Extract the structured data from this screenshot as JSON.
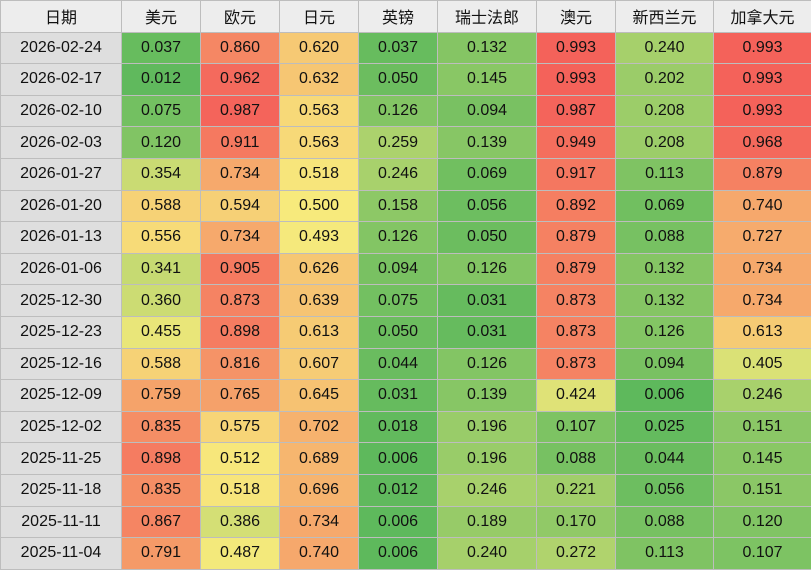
{
  "headers": [
    "日期",
    "美元",
    "欧元",
    "日元",
    "英镑",
    "瑞士法郎",
    "澳元",
    "新西兰元",
    "加拿大元"
  ],
  "rows": [
    {
      "date": "2026-02-24",
      "values": [
        "0.037",
        "0.860",
        "0.620",
        "0.037",
        "0.132",
        "0.993",
        "0.240",
        "0.993"
      ]
    },
    {
      "date": "2026-02-17",
      "values": [
        "0.012",
        "0.962",
        "0.632",
        "0.050",
        "0.145",
        "0.993",
        "0.202",
        "0.993"
      ]
    },
    {
      "date": "2026-02-10",
      "values": [
        "0.075",
        "0.987",
        "0.563",
        "0.126",
        "0.094",
        "0.987",
        "0.208",
        "0.993"
      ]
    },
    {
      "date": "2026-02-03",
      "values": [
        "0.120",
        "0.911",
        "0.563",
        "0.259",
        "0.139",
        "0.949",
        "0.208",
        "0.968"
      ]
    },
    {
      "date": "2026-01-27",
      "values": [
        "0.354",
        "0.734",
        "0.518",
        "0.246",
        "0.069",
        "0.917",
        "0.113",
        "0.879"
      ]
    },
    {
      "date": "2026-01-20",
      "values": [
        "0.588",
        "0.594",
        "0.500",
        "0.158",
        "0.056",
        "0.892",
        "0.069",
        "0.740"
      ]
    },
    {
      "date": "2026-01-13",
      "values": [
        "0.556",
        "0.734",
        "0.493",
        "0.126",
        "0.050",
        "0.879",
        "0.088",
        "0.727"
      ]
    },
    {
      "date": "2026-01-06",
      "values": [
        "0.341",
        "0.905",
        "0.626",
        "0.094",
        "0.126",
        "0.879",
        "0.132",
        "0.734"
      ]
    },
    {
      "date": "2025-12-30",
      "values": [
        "0.360",
        "0.873",
        "0.639",
        "0.075",
        "0.031",
        "0.873",
        "0.132",
        "0.734"
      ]
    },
    {
      "date": "2025-12-23",
      "values": [
        "0.455",
        "0.898",
        "0.613",
        "0.050",
        "0.031",
        "0.873",
        "0.126",
        "0.613"
      ]
    },
    {
      "date": "2025-12-16",
      "values": [
        "0.588",
        "0.816",
        "0.607",
        "0.044",
        "0.126",
        "0.873",
        "0.094",
        "0.405"
      ]
    },
    {
      "date": "2025-12-09",
      "values": [
        "0.759",
        "0.765",
        "0.645",
        "0.031",
        "0.139",
        "0.424",
        "0.006",
        "0.246"
      ]
    },
    {
      "date": "2025-12-02",
      "values": [
        "0.835",
        "0.575",
        "0.702",
        "0.018",
        "0.196",
        "0.107",
        "0.025",
        "0.151"
      ]
    },
    {
      "date": "2025-11-25",
      "values": [
        "0.898",
        "0.512",
        "0.689",
        "0.006",
        "0.196",
        "0.088",
        "0.044",
        "0.145"
      ]
    },
    {
      "date": "2025-11-18",
      "values": [
        "0.835",
        "0.518",
        "0.696",
        "0.012",
        "0.246",
        "0.221",
        "0.056",
        "0.151"
      ]
    },
    {
      "date": "2025-11-11",
      "values": [
        "0.867",
        "0.386",
        "0.734",
        "0.006",
        "0.189",
        "0.170",
        "0.088",
        "0.120"
      ]
    },
    {
      "date": "2025-11-04",
      "values": [
        "0.791",
        "0.487",
        "0.740",
        "0.006",
        "0.240",
        "0.272",
        "0.113",
        "0.107"
      ]
    }
  ],
  "color_scale": {
    "low": "#5cb85c",
    "mid": "#f7ea7c",
    "high": "#f4605a"
  }
}
